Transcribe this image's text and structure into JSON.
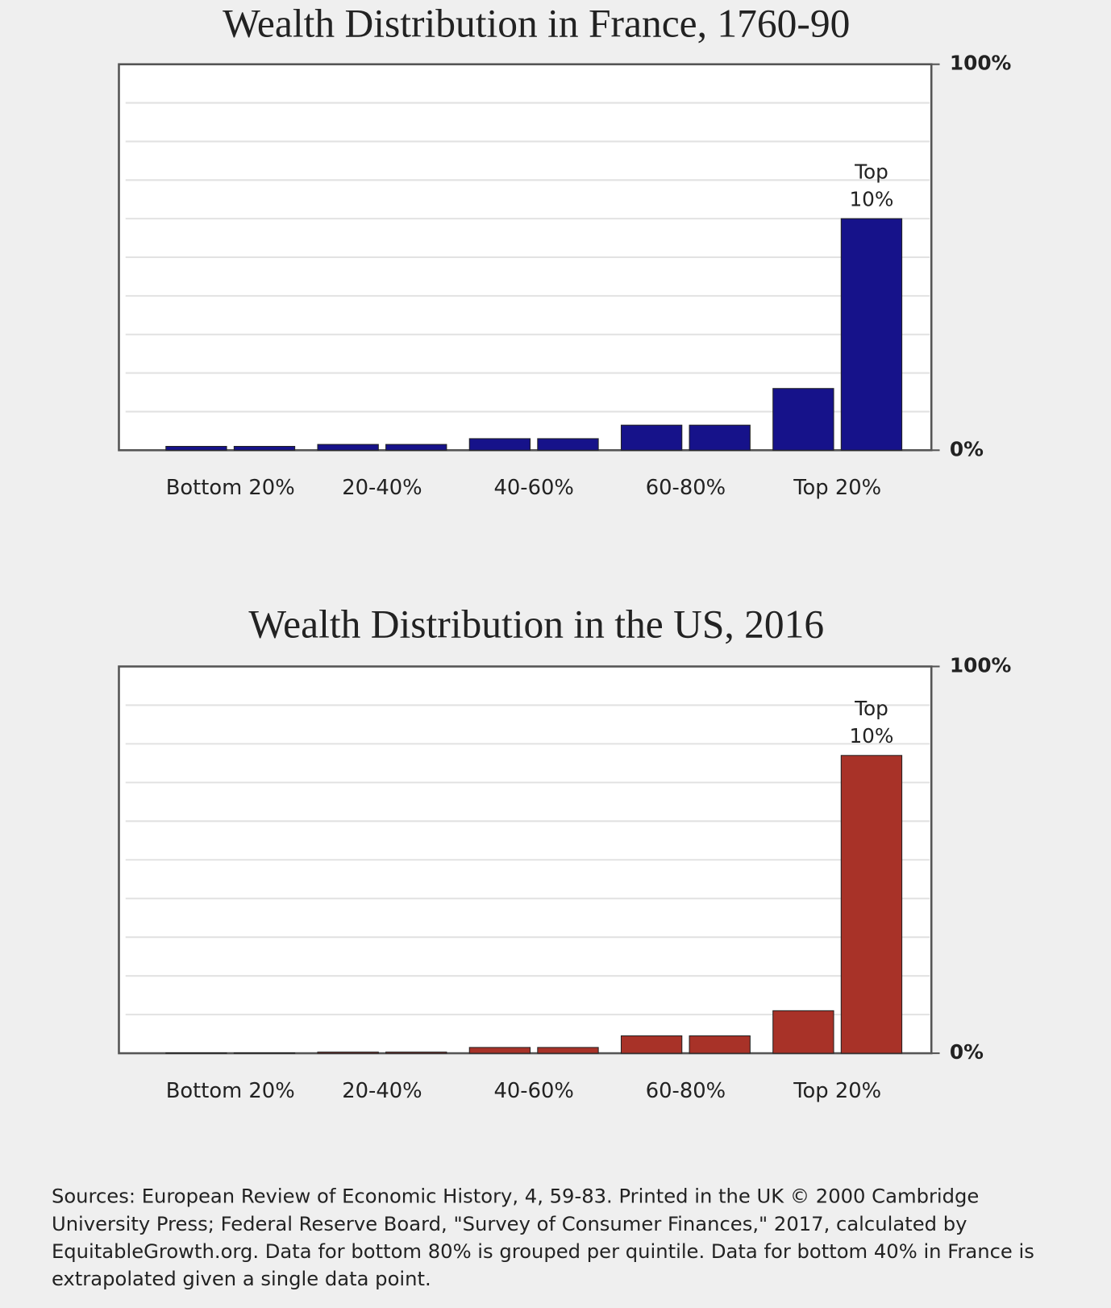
{
  "chart_data": [
    {
      "type": "bar",
      "title": "Wealth Distribution in France, 1760-90",
      "categories": [
        "Bottom 20%",
        "20-40%",
        "40-60%",
        "60-80%",
        "Top 20%"
      ],
      "series": [
        {
          "color": "#16128a",
          "values": [
            1,
            1.5,
            3,
            6.5,
            16
          ]
        },
        {
          "color": "#16128a",
          "values": [
            1,
            1.5,
            3,
            6.5,
            60
          ]
        }
      ],
      "ylim": [
        0,
        100
      ],
      "yticks": [
        {
          "value": 0,
          "label": "0%"
        },
        {
          "value": 100,
          "label": "100%"
        }
      ],
      "ygrid": [
        10,
        20,
        30,
        40,
        50,
        60,
        70,
        80,
        90
      ],
      "annotation": [
        "Top",
        "10%"
      ]
    },
    {
      "type": "bar",
      "title": "Wealth Distribution in the US, 2016",
      "categories": [
        "Bottom 20%",
        "20-40%",
        "40-60%",
        "60-80%",
        "Top 20%"
      ],
      "series": [
        {
          "color": "#a83228",
          "values": [
            0.1,
            0.3,
            1.5,
            4.5,
            11
          ]
        },
        {
          "color": "#a83228",
          "values": [
            0.1,
            0.3,
            1.5,
            4.5,
            77
          ]
        }
      ],
      "ylim": [
        0,
        100
      ],
      "yticks": [
        {
          "value": 0,
          "label": "0%"
        },
        {
          "value": 100,
          "label": "100%"
        }
      ],
      "ygrid": [
        10,
        20,
        30,
        40,
        50,
        60,
        70,
        80,
        90
      ],
      "annotation": [
        "Top",
        "10%"
      ]
    }
  ],
  "sources": "Sources: European Review of Economic History, 4, 59-83. Printed in the UK © 2000 Cambridge University Press; Federal Reserve Board, \"Survey of Consumer Finances,\" 2017, calculated by EquitableGrowth.org. Data for bottom 80% is grouped per quintile. Data for bottom 40% in France is extrapolated given a single data point."
}
